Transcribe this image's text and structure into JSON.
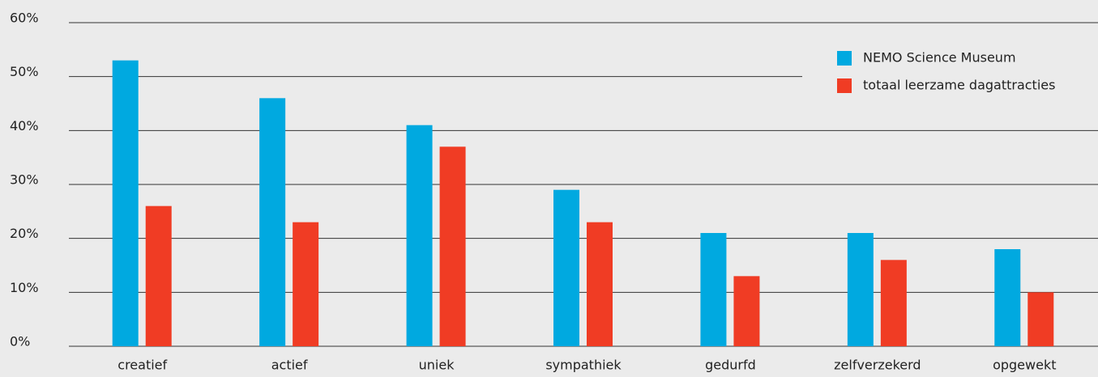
{
  "chart_data": {
    "type": "bar",
    "categories": [
      "creatief",
      "actief",
      "uniek",
      "sympathiek",
      "gedurfd",
      "zelfverzekerd",
      "opgewekt"
    ],
    "series": [
      {
        "name": "NEMO Science Museum",
        "color": "#00a9e0",
        "values": [
          53,
          46,
          41,
          29,
          21,
          21,
          18
        ]
      },
      {
        "name": "totaal leerzame dagattracties",
        "color": "#f03c24",
        "values": [
          26,
          23,
          37,
          23,
          13,
          16,
          10
        ]
      }
    ],
    "ylim": [
      0,
      60
    ],
    "yticks": [
      {
        "value": 0,
        "label": "0%"
      },
      {
        "value": 10,
        "label": "10%"
      },
      {
        "value": 20,
        "label": "20%"
      },
      {
        "value": 30,
        "label": "30%"
      },
      {
        "value": 40,
        "label": "40%"
      },
      {
        "value": 50,
        "label": "50%"
      },
      {
        "value": 60,
        "label": "60%"
      }
    ],
    "grid": true,
    "legend": "upper right"
  }
}
